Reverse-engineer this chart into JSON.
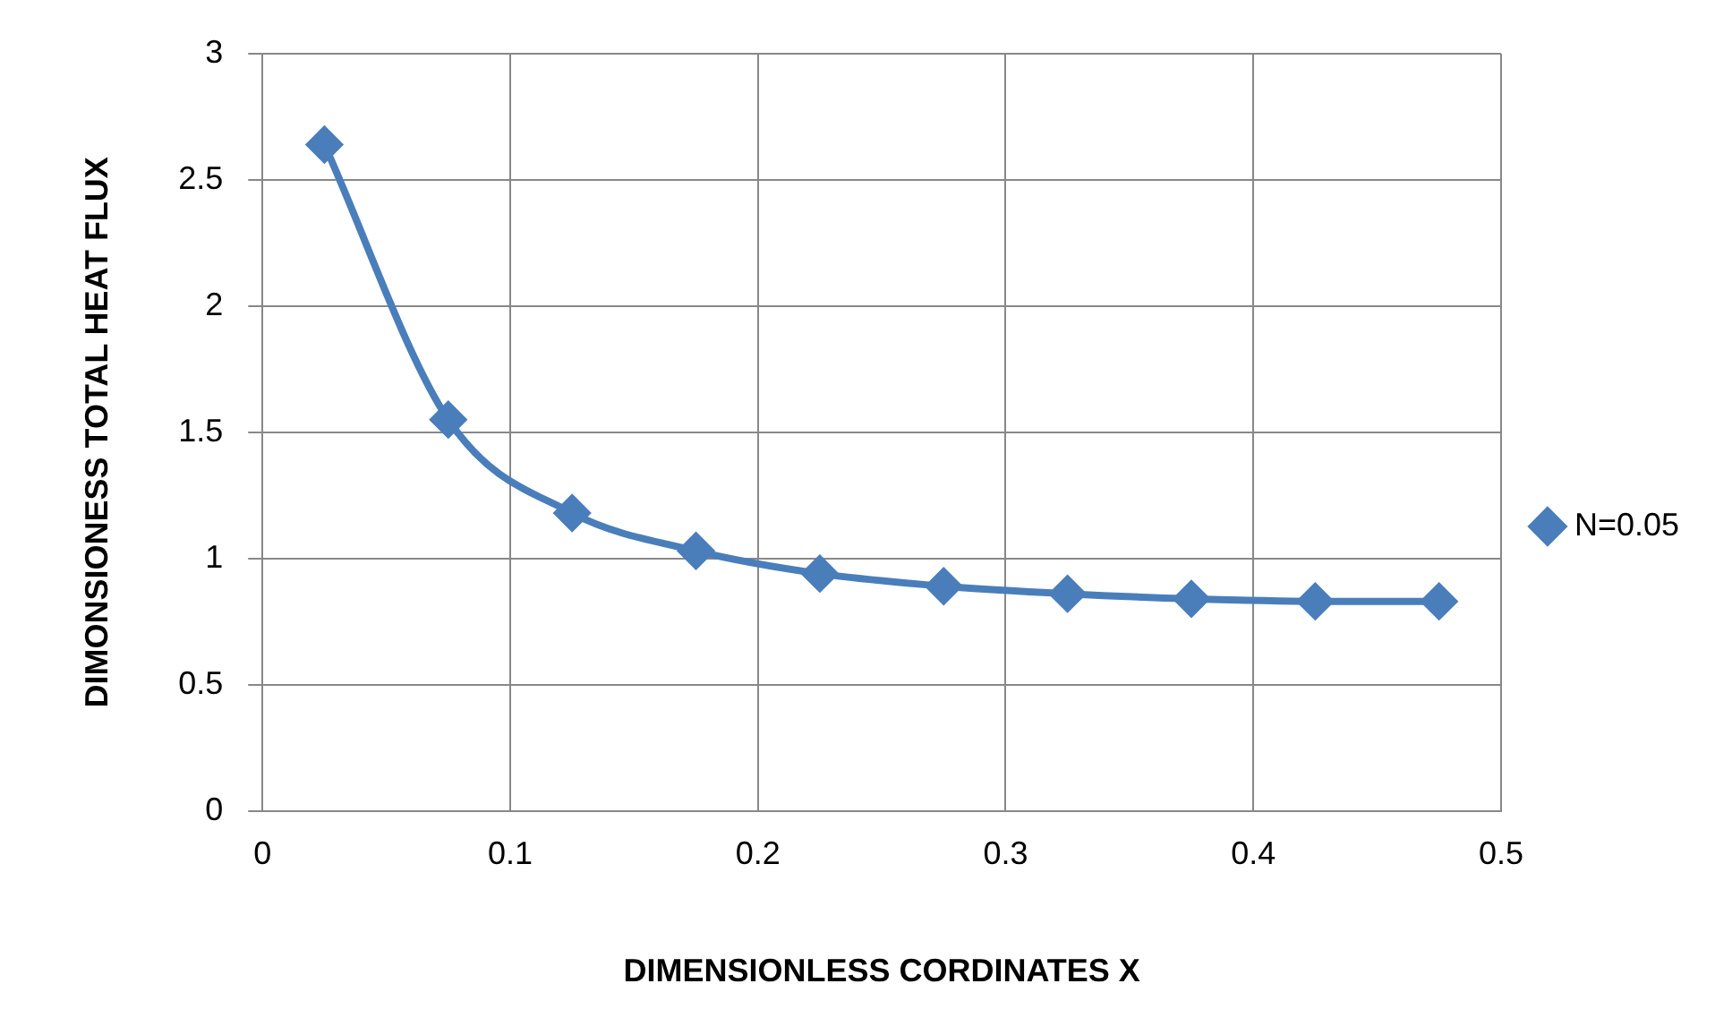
{
  "chart_data": {
    "type": "line",
    "xlabel": "DIMENSIONLESS CORDINATES X",
    "ylabel": "DIMONSIONESS TOTAL HEAT FLUX",
    "x": [
      0.025,
      0.075,
      0.125,
      0.175,
      0.225,
      0.275,
      0.325,
      0.375,
      0.425,
      0.475
    ],
    "series": [
      {
        "name": "N=0.05",
        "color": "#4a7ebb",
        "values": [
          2.64,
          1.55,
          1.18,
          1.03,
          0.94,
          0.89,
          0.86,
          0.84,
          0.83,
          0.83
        ]
      }
    ],
    "xlim": [
      0,
      0.5
    ],
    "xticks": [
      0,
      0.1,
      0.2,
      0.3,
      0.4,
      0.5
    ],
    "ylim": [
      0,
      3
    ],
    "yticks": [
      0,
      0.5,
      1,
      1.5,
      2,
      2.5,
      3
    ],
    "grid": true,
    "legend": "right",
    "marker": "diamond",
    "line_style": "solid"
  }
}
